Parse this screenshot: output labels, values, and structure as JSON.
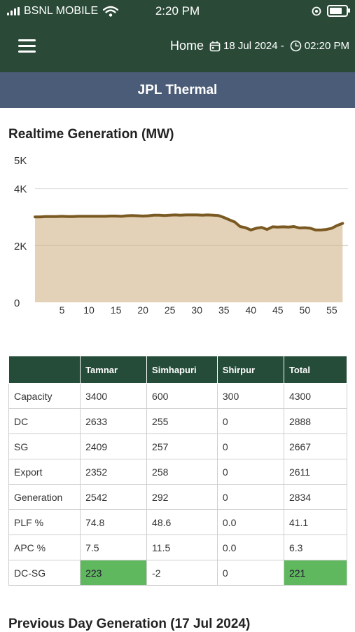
{
  "status_bar": {
    "carrier": "BSNL MOBILE",
    "time": "2:20 PM"
  },
  "header": {
    "home_label": "Home",
    "date": "18 Jul 2024 -",
    "time": "02:20 PM"
  },
  "title": "JPL Thermal",
  "realtime": {
    "title": "Realtime Generation (MW)"
  },
  "chart_data": {
    "type": "area",
    "title": "Realtime Generation (MW)",
    "xlabel": "",
    "ylabel": "",
    "ylim": [
      0,
      5000
    ],
    "y_ticks": [
      "0",
      "2K",
      "4K",
      "5K"
    ],
    "y_tick_values": [
      0,
      2000,
      4000,
      5000
    ],
    "x_ticks": [
      5,
      10,
      15,
      20,
      25,
      30,
      35,
      40,
      45,
      50,
      55
    ],
    "xlim": [
      0,
      58
    ],
    "grid": true,
    "colors": {
      "fill": "#e4d2b8",
      "line": "#7a5a22"
    },
    "series": [
      {
        "x": [
          0,
          1,
          2,
          3,
          4,
          5,
          6,
          7,
          8,
          9,
          10,
          11,
          12,
          13,
          14,
          15,
          16,
          17,
          18,
          19,
          20,
          21,
          22,
          23,
          24,
          25,
          26,
          27,
          28,
          29,
          30,
          31,
          32,
          33,
          34,
          35,
          36,
          37,
          38,
          39,
          40,
          41,
          42,
          43,
          44,
          45,
          46,
          47,
          48,
          49,
          50,
          51,
          52,
          53,
          54,
          55,
          56,
          57
        ],
        "values": [
          3000,
          3000,
          3010,
          3010,
          3010,
          3020,
          3010,
          3010,
          3020,
          3020,
          3020,
          3020,
          3020,
          3020,
          3030,
          3030,
          3020,
          3040,
          3050,
          3040,
          3030,
          3040,
          3060,
          3060,
          3050,
          3060,
          3070,
          3060,
          3070,
          3070,
          3070,
          3060,
          3070,
          3060,
          3050,
          2980,
          2900,
          2820,
          2660,
          2620,
          2540,
          2600,
          2630,
          2560,
          2650,
          2640,
          2650,
          2640,
          2660,
          2610,
          2620,
          2600,
          2540,
          2540,
          2560,
          2600,
          2700,
          2770
        ]
      }
    ]
  },
  "table": {
    "headers": [
      "",
      "Tamnar",
      "Simhapuri",
      "Shirpur",
      "Total"
    ],
    "rows": [
      [
        "Capacity",
        "3400",
        "600",
        "300",
        "4300"
      ],
      [
        "DC",
        "2633",
        "255",
        "0",
        "2888"
      ],
      [
        "SG",
        "2409",
        "257",
        "0",
        "2667"
      ],
      [
        "Export",
        "2352",
        "258",
        "0",
        "2611"
      ],
      [
        "Generation",
        "2542",
        "292",
        "0",
        "2834"
      ],
      [
        "PLF %",
        "74.8",
        "48.6",
        "0.0",
        "41.1"
      ],
      [
        "APC %",
        "7.5",
        "11.5",
        "0.0",
        "6.3"
      ],
      [
        "DC-SG",
        "223",
        "-2",
        "0",
        "221"
      ]
    ],
    "highlight_color": "#5fb85d"
  },
  "previous": {
    "title": "Previous Day Generation (17 Jul 2024)"
  }
}
